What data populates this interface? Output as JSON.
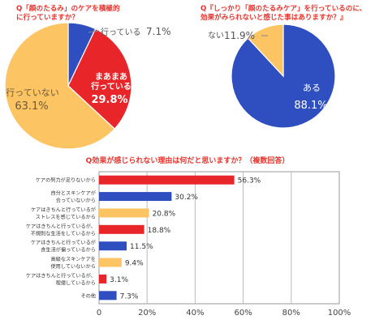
{
  "chart_data": [
    {
      "type": "pie",
      "title": "Q「顔のたるみ」のケアを積極的\nに行っていますか？",
      "slices": [
        {
          "label": "行っている",
          "value": 7.1,
          "display": "7.1%",
          "color": "#2f4fc0"
        },
        {
          "label": "まあまあ\n行っている",
          "value": 29.8,
          "display": "29.8%",
          "color": "#e8262a"
        },
        {
          "label": "行っていない",
          "value": 63.1,
          "display": "63.1%",
          "color": "#fcc463"
        }
      ]
    },
    {
      "type": "pie",
      "title": "Q『しっかり「顔のたるみケア」を行っているのに、\n効果がみられないと感じた事はありますか？』",
      "slices": [
        {
          "label": "ある",
          "value": 88.1,
          "display": "88.1%",
          "color": "#2f4fc0"
        },
        {
          "label": "ない",
          "value": 11.9,
          "display": "11.9%",
          "color": "#fcc463"
        }
      ]
    },
    {
      "type": "bar",
      "orientation": "horizontal",
      "title": "Q効果が感じられない理由は何だと思いますか？（複数回答）",
      "categories": [
        "ケアの努力が足りないから",
        "自分とスキンケアが\n合っていないから",
        "ケアはきちんと行っているが\nストレスを感じているから",
        "ケアはきちんと行っているが、\n不規則な生活をしているから",
        "ケアはきちんと行っているが\n食生活が偏っているから",
        "高級なスキンケアを\n使用していないから",
        "ケアはきちんと行っているが、\n喫煙しているから",
        "その他"
      ],
      "values": [
        56.3,
        30.2,
        20.8,
        18.8,
        11.5,
        9.4,
        3.1,
        7.3
      ],
      "labels": [
        "56.3%",
        "30.2%",
        "20.8%",
        "18.8%",
        "11.5%",
        "9.4%",
        "3.1%",
        "7.3%"
      ],
      "colors": [
        "#e8262a",
        "#2f4fc0",
        "#fcc463",
        "#e8262a",
        "#2f4fc0",
        "#fcc463",
        "#e8262a",
        "#2f4fc0"
      ],
      "xlim": [
        0,
        100
      ],
      "xticks": [
        "0",
        "20%",
        "40%",
        "60%",
        "80%",
        "100%"
      ],
      "grid": true
    }
  ]
}
